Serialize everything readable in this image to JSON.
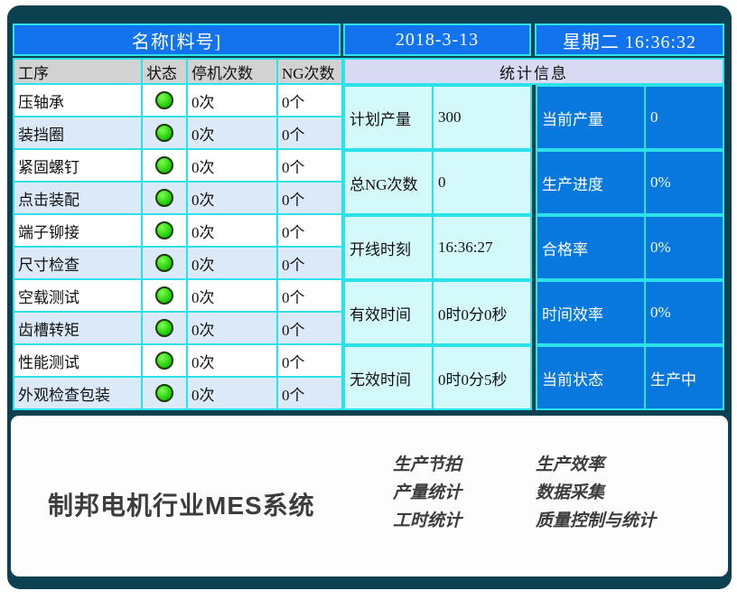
{
  "header": {
    "name_label": "名称[料号]",
    "date": "2018-3-13",
    "weekday_time": "星期二 16:36:32"
  },
  "process_table": {
    "columns": {
      "process": "工序",
      "status": "状态",
      "stops": "停机次数",
      "ng": "NG次数"
    },
    "rows": [
      {
        "name": "压轴承",
        "status": "green",
        "stops": "0次",
        "ng": "0个"
      },
      {
        "name": "装挡圈",
        "status": "green",
        "stops": "0次",
        "ng": "0个"
      },
      {
        "name": "紧固螺钉",
        "status": "green",
        "stops": "0次",
        "ng": "0个"
      },
      {
        "name": "点击装配",
        "status": "green",
        "stops": "0次",
        "ng": "0个"
      },
      {
        "name": "端子铆接",
        "status": "green",
        "stops": "0次",
        "ng": "0个"
      },
      {
        "name": "尺寸检查",
        "status": "green",
        "stops": "0次",
        "ng": "0个"
      },
      {
        "name": "空载测试",
        "status": "green",
        "stops": "0次",
        "ng": "0个"
      },
      {
        "name": "齿槽转矩",
        "status": "green",
        "stops": "0次",
        "ng": "0个"
      },
      {
        "name": "性能测试",
        "status": "green",
        "stops": "0次",
        "ng": "0个"
      },
      {
        "name": "外观检查包装",
        "status": "green",
        "stops": "0次",
        "ng": "0个"
      }
    ]
  },
  "stats": {
    "title": "统计信息",
    "rows": [
      {
        "label": "计划产量",
        "value": "300",
        "label2": "当前产量",
        "value2": "0"
      },
      {
        "label": "总NG次数",
        "value": "0",
        "label2": "生产进度",
        "value2": "0%"
      },
      {
        "label": "开线时刻",
        "value": "16:36:27",
        "label2": "合格率",
        "value2": "0%"
      },
      {
        "label": "有效时间",
        "value": "0时0分0秒",
        "label2": "时间效率",
        "value2": "0%"
      },
      {
        "label": "无效时间",
        "value": "0时0分5秒",
        "label2": "当前状态",
        "value2": "生产中"
      }
    ]
  },
  "footer": {
    "brand": "制邦电机行业MES系统",
    "features_col1": [
      {
        "label": "生产节拍"
      },
      {
        "label": "产量统计"
      },
      {
        "label": "工时统计"
      }
    ],
    "features_col2": [
      {
        "label": "生产效率"
      },
      {
        "label": "数据采集"
      },
      {
        "label": "质量控制与统计"
      }
    ]
  },
  "colors": {
    "frame_teal": "#0C4152",
    "header_blue": "#1373EE",
    "stat_cell_blue": "#0878DE",
    "stats_header_lavender": "#D8D9F2",
    "column_header_gray": "#D2D2D2",
    "alt_row_blue": "#DCE9F8",
    "grid_aqua": "#2AE2E8",
    "stat_cell_cyan": "#D4F9FB",
    "status_green": "#14c400",
    "brand_text": "#3C3C3C"
  }
}
